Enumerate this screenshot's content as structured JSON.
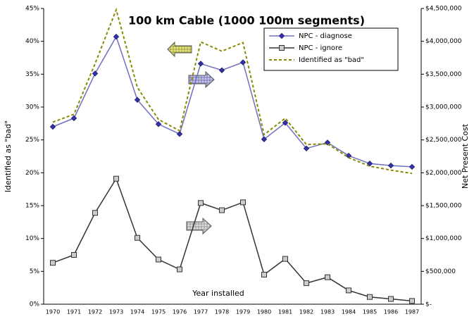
{
  "chart_data": {
    "type": "line",
    "title": "100 km Cable (1000 100m segments)",
    "x_label": "Year installed",
    "y_label": "Identified as \"bad\"",
    "y2_label": "Net Present Cost",
    "categories": [
      "1970",
      "1971",
      "1972",
      "1973",
      "1974",
      "1975",
      "1976",
      "1977",
      "1978",
      "1979",
      "1980",
      "1981",
      "1982",
      "1983",
      "1984",
      "1985",
      "1986",
      "1987"
    ],
    "series": [
      {
        "name": "NPC - diagnose",
        "color": "#7070c0",
        "marker": "diamond",
        "axis": "y2",
        "values": [
          2700000,
          2830000,
          3510000,
          4070000,
          3110000,
          2740000,
          2590000,
          3660000,
          3560000,
          3680000,
          2510000,
          2760000,
          2370000,
          2460000,
          2260000,
          2140000,
          2110000,
          2090000
        ]
      },
      {
        "name": "NPC - ignore",
        "color": "#333333",
        "marker": "square",
        "axis": "y2",
        "values": [
          630000,
          750000,
          1390000,
          1910000,
          1010000,
          680000,
          530000,
          1540000,
          1430000,
          1550000,
          450000,
          690000,
          320000,
          410000,
          210000,
          110000,
          80000,
          50000
        ]
      },
      {
        "name": "Identified as \"bad\"",
        "color": "#8a8a00",
        "marker": "none",
        "dash": true,
        "values": [
          27.7,
          28.9,
          36.6,
          44.8,
          33.0,
          28.1,
          26.4,
          39.9,
          38.5,
          39.8,
          25.8,
          28.3,
          24.3,
          24.4,
          22.3,
          21.0,
          20.4,
          19.9
        ]
      }
    ],
    "ylim": [
      0,
      45
    ],
    "yticks": [
      {
        "value": 0,
        "label": "0%"
      },
      {
        "value": 5,
        "label": "5%"
      },
      {
        "value": 10,
        "label": "10%"
      },
      {
        "value": 15,
        "label": "15%"
      },
      {
        "value": 20,
        "label": "20%"
      },
      {
        "value": 25,
        "label": "25%"
      },
      {
        "value": 30,
        "label": "30%"
      },
      {
        "value": 35,
        "label": "35%"
      },
      {
        "value": 40,
        "label": "40%"
      },
      {
        "value": 45,
        "label": "45%"
      }
    ],
    "y2lim": [
      0,
      4500000
    ],
    "y2ticks": [
      {
        "value": 0,
        "label": "$-"
      },
      {
        "value": 500000,
        "label": "$500,000"
      },
      {
        "value": 1000000,
        "label": "$1,000,000"
      },
      {
        "value": 1500000,
        "label": "$1,500,000"
      },
      {
        "value": 2000000,
        "label": "$2,000,000"
      },
      {
        "value": 2500000,
        "label": "$2,500,000"
      },
      {
        "value": 3000000,
        "label": "$3,000,000"
      },
      {
        "value": 3500000,
        "label": "$3,500,000"
      },
      {
        "value": 4000000,
        "label": "$4,000,000"
      },
      {
        "value": 4500000,
        "label": "$4,500,000"
      }
    ],
    "grid": false,
    "legend": "upper right"
  }
}
